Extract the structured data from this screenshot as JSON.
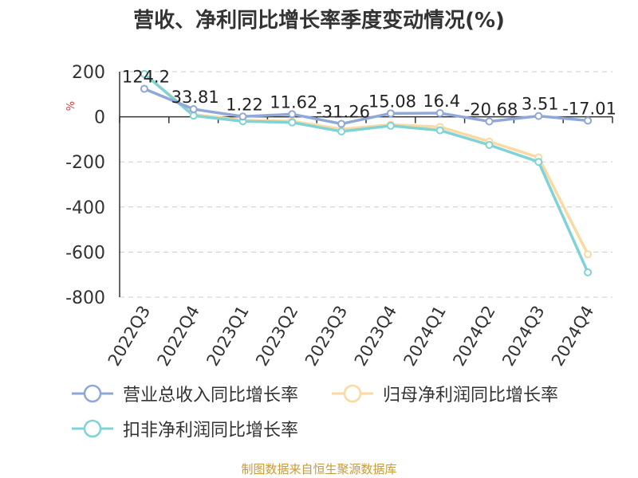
{
  "chart_data": {
    "type": "line",
    "title": "营收、净利同比增长率季度变动情况(%)",
    "ylabel": "%",
    "categories": [
      "2022Q3",
      "2022Q4",
      "2023Q1",
      "2023Q2",
      "2023Q3",
      "2023Q4",
      "2024Q1",
      "2024Q2",
      "2024Q3",
      "2024Q4"
    ],
    "ylim": [
      -800,
      200
    ],
    "yticks": [
      200,
      0,
      -200,
      -400,
      -600,
      -800
    ],
    "grid": true,
    "legend_position": "bottom",
    "series": [
      {
        "name": "营业总收入同比增长率",
        "color": "#8fa8d8",
        "values": [
          124.2,
          33.81,
          1.22,
          11.62,
          -31.26,
          15.08,
          16.4,
          -20.68,
          3.51,
          -17.01
        ],
        "labels": [
          "124.2",
          "33.81",
          "1.22",
          "11.62",
          "-31.26",
          "15.08",
          "16.4",
          "-20.68",
          "3.51",
          "-17.01"
        ]
      },
      {
        "name": "归母净利润同比增长率",
        "color": "#fbd9a0",
        "values": [
          190,
          10,
          -15,
          -20,
          -55,
          -35,
          -45,
          -110,
          -180,
          -610
        ]
      },
      {
        "name": "扣非净利润同比增长率",
        "color": "#7fd3d6",
        "values": [
          190,
          5,
          -20,
          -25,
          -65,
          -40,
          -60,
          -125,
          -200,
          -690
        ]
      }
    ]
  },
  "footer": "制图数据来自恒生聚源数据库"
}
